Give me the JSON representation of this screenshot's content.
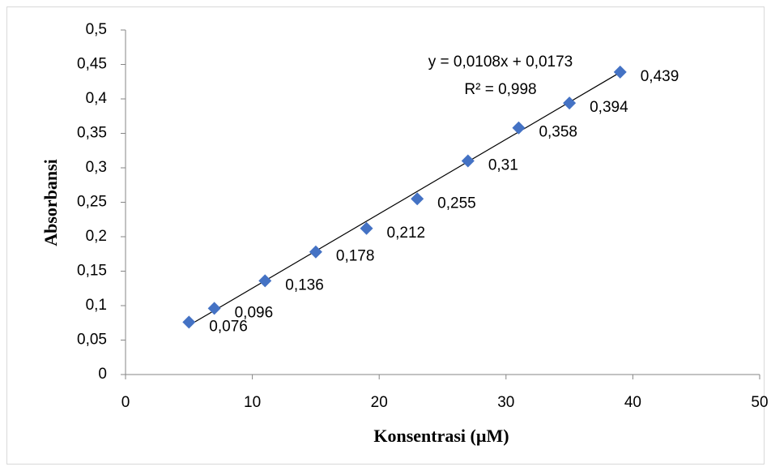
{
  "chart_data": {
    "type": "scatter",
    "x_label": "Konsentrasi (µM)",
    "y_label": "Absorbansi",
    "x": [
      5,
      7,
      11,
      15,
      19,
      23,
      27,
      31,
      35,
      39
    ],
    "values": [
      0.076,
      0.096,
      0.136,
      0.178,
      0.212,
      0.255,
      0.31,
      0.358,
      0.394,
      0.439
    ],
    "value_labels": [
      "0,076",
      "0,096",
      "0,136",
      "0,178",
      "0,212",
      "0,255",
      "0,31",
      "0,358",
      "0,394",
      "0,439"
    ],
    "color": "#4472c4",
    "xlim": [
      0,
      50
    ],
    "xticks": [
      0,
      10,
      20,
      30,
      40,
      50
    ],
    "ylim": [
      0,
      0.5
    ],
    "yticks": [
      0,
      {
        "value": 0.05,
        "label": "0,05"
      },
      {
        "value": 0.1,
        "label": "0,1"
      },
      {
        "value": 0.15,
        "label": "0,15"
      },
      {
        "value": 0.2,
        "label": "0,2"
      },
      {
        "value": 0.25,
        "label": "0,25"
      },
      {
        "value": 0.3,
        "label": "0,3"
      },
      {
        "value": 0.35,
        "label": "0,35"
      },
      {
        "value": 0.4,
        "label": "0,4"
      },
      {
        "value": 0.45,
        "label": "0,45"
      },
      {
        "value": 0.5,
        "label": "0,5"
      }
    ],
    "grid": false,
    "trendline": {
      "slope": 0.0108,
      "intercept": 0.0173,
      "equation": "y = 0,0108x + 0,0173",
      "r2": "R² = 0,998"
    }
  }
}
